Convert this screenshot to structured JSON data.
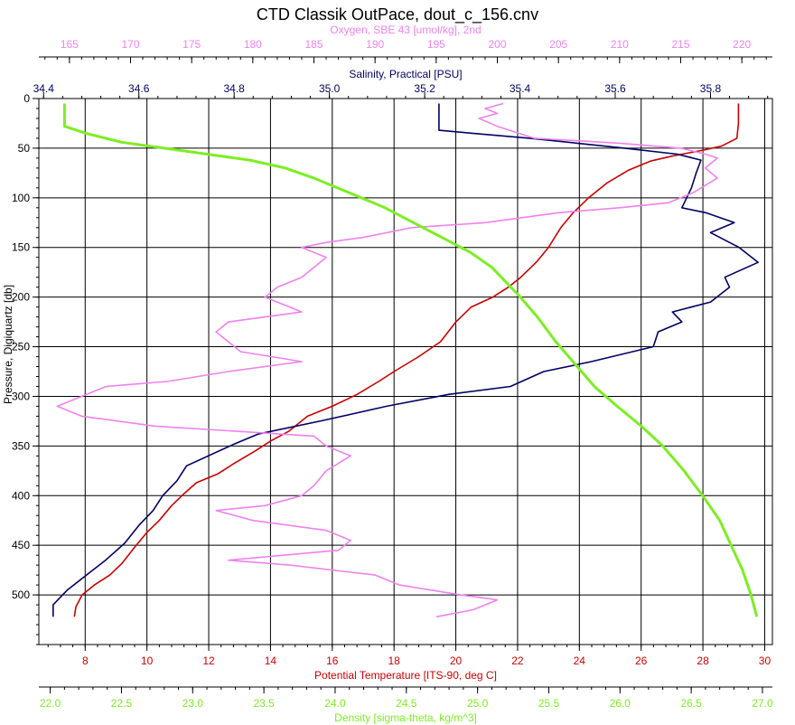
{
  "chart_data": {
    "type": "line",
    "title": "CTD Classik OutPace, dout_c_156.cnv",
    "ylabel": "Pressure, Digiquartz [db]",
    "ylim": [
      0,
      550
    ],
    "y_reversed": true,
    "y_ticks": [
      "0",
      "50",
      "100",
      "150",
      "200",
      "250",
      "300",
      "350",
      "400",
      "450",
      "500"
    ],
    "grid": true,
    "colors": {
      "temperature": "#cc0000",
      "salinity": "#000066",
      "oxygen": "#ee82ee",
      "density": "#7cee22",
      "oxygen_label": "#ee82ee",
      "salinity_label": "#000066",
      "temperature_label": "#cc0000",
      "density_label": "#7cee22"
    },
    "axes": {
      "oxygen": {
        "label": "Oxygen, SBE 43 [umol/kg], 2nd",
        "range": [
          162.5,
          222.5
        ],
        "ticks": [
          "165",
          "170",
          "175",
          "180",
          "185",
          "190",
          "195",
          "200",
          "205",
          "210",
          "215",
          "220"
        ]
      },
      "salinity": {
        "label": "Salinity, Practical [PSU]",
        "range": [
          34.39,
          35.93
        ],
        "ticks": [
          "34.4",
          "34.6",
          "34.8",
          "35.0",
          "35.2",
          "35.4",
          "35.6",
          "35.8"
        ]
      },
      "temperature": {
        "label": "Potential Temperature [ITS-90, deg C]",
        "range": [
          6.5,
          30.25
        ],
        "ticks": [
          "8",
          "10",
          "12",
          "14",
          "16",
          "18",
          "20",
          "22",
          "24",
          "26",
          "28",
          "30"
        ]
      },
      "density": {
        "label": "Density [sigma-theta, kg/m^3]",
        "range": [
          21.92,
          27.07
        ],
        "ticks": [
          "22.0",
          "22.5",
          "23.0",
          "23.5",
          "24.0",
          "24.5",
          "25.0",
          "25.5",
          "26.0",
          "26.5",
          "27.0"
        ]
      }
    },
    "series": [
      {
        "name": "Potential Temperature",
        "axis": "temperature",
        "points": [
          [
            29.15,
            5
          ],
          [
            29.15,
            25
          ],
          [
            29.1,
            40
          ],
          [
            28.6,
            48
          ],
          [
            28.0,
            52
          ],
          [
            27.5,
            55
          ],
          [
            27.0,
            58
          ],
          [
            26.3,
            63
          ],
          [
            25.6,
            72
          ],
          [
            24.9,
            85
          ],
          [
            24.3,
            100
          ],
          [
            23.8,
            115
          ],
          [
            23.4,
            130
          ],
          [
            23.0,
            150
          ],
          [
            22.6,
            165
          ],
          [
            22.1,
            180
          ],
          [
            21.7,
            190
          ],
          [
            21.2,
            200
          ],
          [
            20.5,
            210
          ],
          [
            20.0,
            225
          ],
          [
            19.5,
            245
          ],
          [
            18.8,
            260
          ],
          [
            18.0,
            275
          ],
          [
            17.5,
            285
          ],
          [
            16.8,
            298
          ],
          [
            16.0,
            310
          ],
          [
            15.2,
            320
          ],
          [
            14.6,
            335
          ],
          [
            14.0,
            345
          ],
          [
            13.5,
            355
          ],
          [
            12.8,
            368
          ],
          [
            12.3,
            378
          ],
          [
            11.6,
            387
          ],
          [
            11.2,
            398
          ],
          [
            10.8,
            410
          ],
          [
            10.4,
            425
          ],
          [
            10.0,
            437
          ],
          [
            9.6,
            452
          ],
          [
            9.2,
            468
          ],
          [
            8.8,
            480
          ],
          [
            8.3,
            490
          ],
          [
            7.9,
            500
          ],
          [
            7.7,
            512
          ],
          [
            7.65,
            522
          ]
        ]
      },
      {
        "name": "Salinity",
        "axis": "salinity",
        "points": [
          [
            35.23,
            5
          ],
          [
            35.23,
            32
          ],
          [
            35.3,
            35
          ],
          [
            35.42,
            40
          ],
          [
            35.52,
            45
          ],
          [
            35.62,
            50
          ],
          [
            35.73,
            56
          ],
          [
            35.78,
            62
          ],
          [
            35.77,
            75
          ],
          [
            35.76,
            90
          ],
          [
            35.75,
            100
          ],
          [
            35.74,
            110
          ],
          [
            35.79,
            115
          ],
          [
            35.85,
            125
          ],
          [
            35.8,
            135
          ],
          [
            35.86,
            150
          ],
          [
            35.9,
            165
          ],
          [
            35.83,
            180
          ],
          [
            35.84,
            190
          ],
          [
            35.8,
            205
          ],
          [
            35.72,
            215
          ],
          [
            35.74,
            225
          ],
          [
            35.69,
            235
          ],
          [
            35.68,
            250
          ],
          [
            35.55,
            265
          ],
          [
            35.45,
            275
          ],
          [
            35.38,
            290
          ],
          [
            35.25,
            298
          ],
          [
            35.12,
            310
          ],
          [
            34.98,
            325
          ],
          [
            34.85,
            338
          ],
          [
            34.8,
            348
          ],
          [
            34.7,
            370
          ],
          [
            34.68,
            385
          ],
          [
            34.65,
            400
          ],
          [
            34.63,
            415
          ],
          [
            34.6,
            430
          ],
          [
            34.57,
            448
          ],
          [
            34.53,
            465
          ],
          [
            34.49,
            480
          ],
          [
            34.45,
            495
          ],
          [
            34.42,
            510
          ],
          [
            34.42,
            522
          ]
        ]
      },
      {
        "name": "Oxygen",
        "axis": "oxygen",
        "points": [
          [
            200.5,
            5
          ],
          [
            199,
            10
          ],
          [
            200,
            15
          ],
          [
            198.5,
            20
          ],
          [
            200,
            28
          ],
          [
            203,
            40
          ],
          [
            210,
            45
          ],
          [
            215,
            50
          ],
          [
            217,
            56
          ],
          [
            218,
            60
          ],
          [
            217,
            70
          ],
          [
            218,
            80
          ],
          [
            216,
            95
          ],
          [
            214,
            105
          ],
          [
            210,
            110
          ],
          [
            205,
            115
          ],
          [
            199,
            125
          ],
          [
            193,
            130
          ],
          [
            189,
            140
          ],
          [
            186,
            145
          ],
          [
            184,
            150
          ],
          [
            186,
            160
          ],
          [
            185,
            170
          ],
          [
            184,
            180
          ],
          [
            183,
            185
          ],
          [
            182,
            190
          ],
          [
            181,
            200
          ],
          [
            182,
            205
          ],
          [
            184,
            215
          ],
          [
            178,
            225
          ],
          [
            177,
            235
          ],
          [
            178,
            245
          ],
          [
            179,
            255
          ],
          [
            184,
            265
          ],
          [
            178,
            275
          ],
          [
            173,
            285
          ],
          [
            168,
            290
          ],
          [
            166,
            300
          ],
          [
            164,
            310
          ],
          [
            166,
            320
          ],
          [
            172,
            330
          ],
          [
            185,
            340
          ],
          [
            186,
            350
          ],
          [
            188,
            360
          ],
          [
            186,
            375
          ],
          [
            185,
            390
          ],
          [
            184,
            400
          ],
          [
            181,
            410
          ],
          [
            177,
            415
          ],
          [
            180,
            425
          ],
          [
            186,
            435
          ],
          [
            188,
            445
          ],
          [
            187,
            455
          ],
          [
            178,
            465
          ],
          [
            183,
            470
          ],
          [
            190,
            480
          ],
          [
            192,
            490
          ],
          [
            197,
            500
          ],
          [
            200,
            505
          ],
          [
            198,
            515
          ],
          [
            195,
            522
          ]
        ]
      },
      {
        "name": "Density",
        "axis": "density",
        "points": [
          [
            22.1,
            5
          ],
          [
            22.1,
            28
          ],
          [
            22.25,
            35
          ],
          [
            22.5,
            44
          ],
          [
            22.8,
            50
          ],
          [
            23.1,
            56
          ],
          [
            23.4,
            62
          ],
          [
            23.65,
            70
          ],
          [
            23.85,
            80
          ],
          [
            24.1,
            95
          ],
          [
            24.35,
            110
          ],
          [
            24.55,
            125
          ],
          [
            24.75,
            140
          ],
          [
            24.95,
            155
          ],
          [
            25.1,
            170
          ],
          [
            25.2,
            185
          ],
          [
            25.3,
            200
          ],
          [
            25.42,
            220
          ],
          [
            25.55,
            245
          ],
          [
            25.7,
            270
          ],
          [
            25.82,
            290
          ],
          [
            25.98,
            310
          ],
          [
            26.15,
            330
          ],
          [
            26.3,
            350
          ],
          [
            26.45,
            375
          ],
          [
            26.58,
            400
          ],
          [
            26.7,
            425
          ],
          [
            26.78,
            450
          ],
          [
            26.86,
            475
          ],
          [
            26.92,
            500
          ],
          [
            26.96,
            522
          ]
        ]
      }
    ]
  }
}
